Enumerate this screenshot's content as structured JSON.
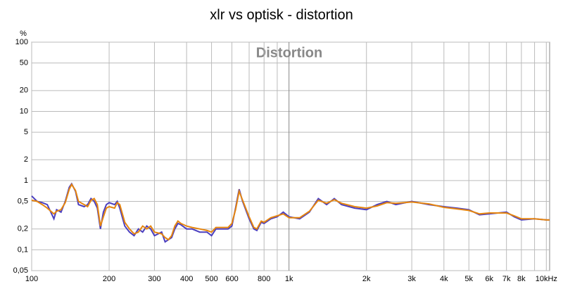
{
  "chart_data": {
    "type": "line",
    "title": "xlr vs optisk - distortion",
    "annotation": "Distortion",
    "y_unit": "%",
    "x": [
      100,
      105,
      110,
      115,
      122,
      125,
      130,
      135,
      140,
      143,
      148,
      152,
      160,
      165,
      170,
      175,
      180,
      185,
      190,
      195,
      200,
      210,
      215,
      220,
      230,
      240,
      250,
      260,
      270,
      280,
      290,
      300,
      320,
      330,
      340,
      350,
      360,
      370,
      380,
      400,
      420,
      450,
      480,
      500,
      520,
      550,
      580,
      600,
      620,
      640,
      660,
      700,
      730,
      750,
      780,
      800,
      850,
      900,
      950,
      1000,
      1100,
      1200,
      1300,
      1400,
      1500,
      1600,
      1800,
      2000,
      2200,
      2400,
      2600,
      3000,
      3500,
      4000,
      4500,
      5000,
      5500,
      6000,
      7000,
      7500,
      8000,
      9000,
      10000,
      10300
    ],
    "series": [
      {
        "name": "xlr",
        "color": "#4b3fbf",
        "values": [
          0.6,
          0.5,
          0.48,
          0.45,
          0.28,
          0.38,
          0.35,
          0.5,
          0.8,
          0.9,
          0.7,
          0.45,
          0.42,
          0.45,
          0.55,
          0.5,
          0.4,
          0.2,
          0.35,
          0.45,
          0.48,
          0.45,
          0.5,
          0.4,
          0.22,
          0.18,
          0.16,
          0.2,
          0.18,
          0.22,
          0.2,
          0.16,
          0.18,
          0.13,
          0.14,
          0.15,
          0.2,
          0.24,
          0.23,
          0.2,
          0.2,
          0.18,
          0.18,
          0.16,
          0.2,
          0.2,
          0.2,
          0.22,
          0.4,
          0.75,
          0.5,
          0.28,
          0.2,
          0.19,
          0.25,
          0.24,
          0.28,
          0.3,
          0.35,
          0.3,
          0.28,
          0.35,
          0.55,
          0.45,
          0.55,
          0.45,
          0.4,
          0.38,
          0.45,
          0.5,
          0.45,
          0.5,
          0.45,
          0.42,
          0.4,
          0.38,
          0.32,
          0.33,
          0.35,
          0.3,
          0.27,
          0.28,
          0.27,
          0.27
        ]
      },
      {
        "name": "optisk",
        "color": "#e5850f",
        "values": [
          0.52,
          0.5,
          0.45,
          0.4,
          0.33,
          0.36,
          0.38,
          0.48,
          0.75,
          0.88,
          0.72,
          0.5,
          0.45,
          0.42,
          0.52,
          0.55,
          0.45,
          0.22,
          0.3,
          0.4,
          0.42,
          0.4,
          0.48,
          0.45,
          0.25,
          0.2,
          0.17,
          0.18,
          0.22,
          0.2,
          0.22,
          0.18,
          0.17,
          0.15,
          0.14,
          0.16,
          0.22,
          0.26,
          0.24,
          0.22,
          0.21,
          0.2,
          0.19,
          0.18,
          0.21,
          0.21,
          0.21,
          0.24,
          0.38,
          0.7,
          0.52,
          0.3,
          0.21,
          0.2,
          0.26,
          0.25,
          0.29,
          0.31,
          0.33,
          0.29,
          0.29,
          0.36,
          0.52,
          0.47,
          0.53,
          0.47,
          0.42,
          0.4,
          0.43,
          0.48,
          0.47,
          0.49,
          0.46,
          0.41,
          0.39,
          0.37,
          0.33,
          0.34,
          0.34,
          0.31,
          0.28,
          0.28,
          0.27,
          0.27
        ]
      }
    ],
    "xlim": [
      100,
      10300
    ],
    "ylim": [
      0.05,
      100
    ],
    "log_x": true,
    "log_y": true,
    "grid": true,
    "xticks": [
      100,
      200,
      300,
      400,
      500,
      600,
      800,
      {
        "value": 1000,
        "label": "1k"
      },
      {
        "value": 2000,
        "label": "2k"
      },
      {
        "value": 3000,
        "label": "3k"
      },
      {
        "value": 4000,
        "label": "4k"
      },
      {
        "value": 5000,
        "label": "5k"
      },
      {
        "value": 6000,
        "label": "6k"
      },
      {
        "value": 7000,
        "label": "7k"
      },
      {
        "value": 8000,
        "label": "8k"
      },
      {
        "value": 10000,
        "label": "10kHz"
      }
    ],
    "xminorticks": [
      700,
      900,
      9000
    ],
    "yticks": [
      100,
      50,
      20,
      10,
      5,
      2,
      1,
      {
        "value": 0.5,
        "label": "0,5"
      },
      {
        "value": 0.2,
        "label": "0,2"
      },
      {
        "value": 0.1,
        "label": "0,1"
      },
      {
        "value": 0.05,
        "label": "0,05"
      }
    ]
  }
}
